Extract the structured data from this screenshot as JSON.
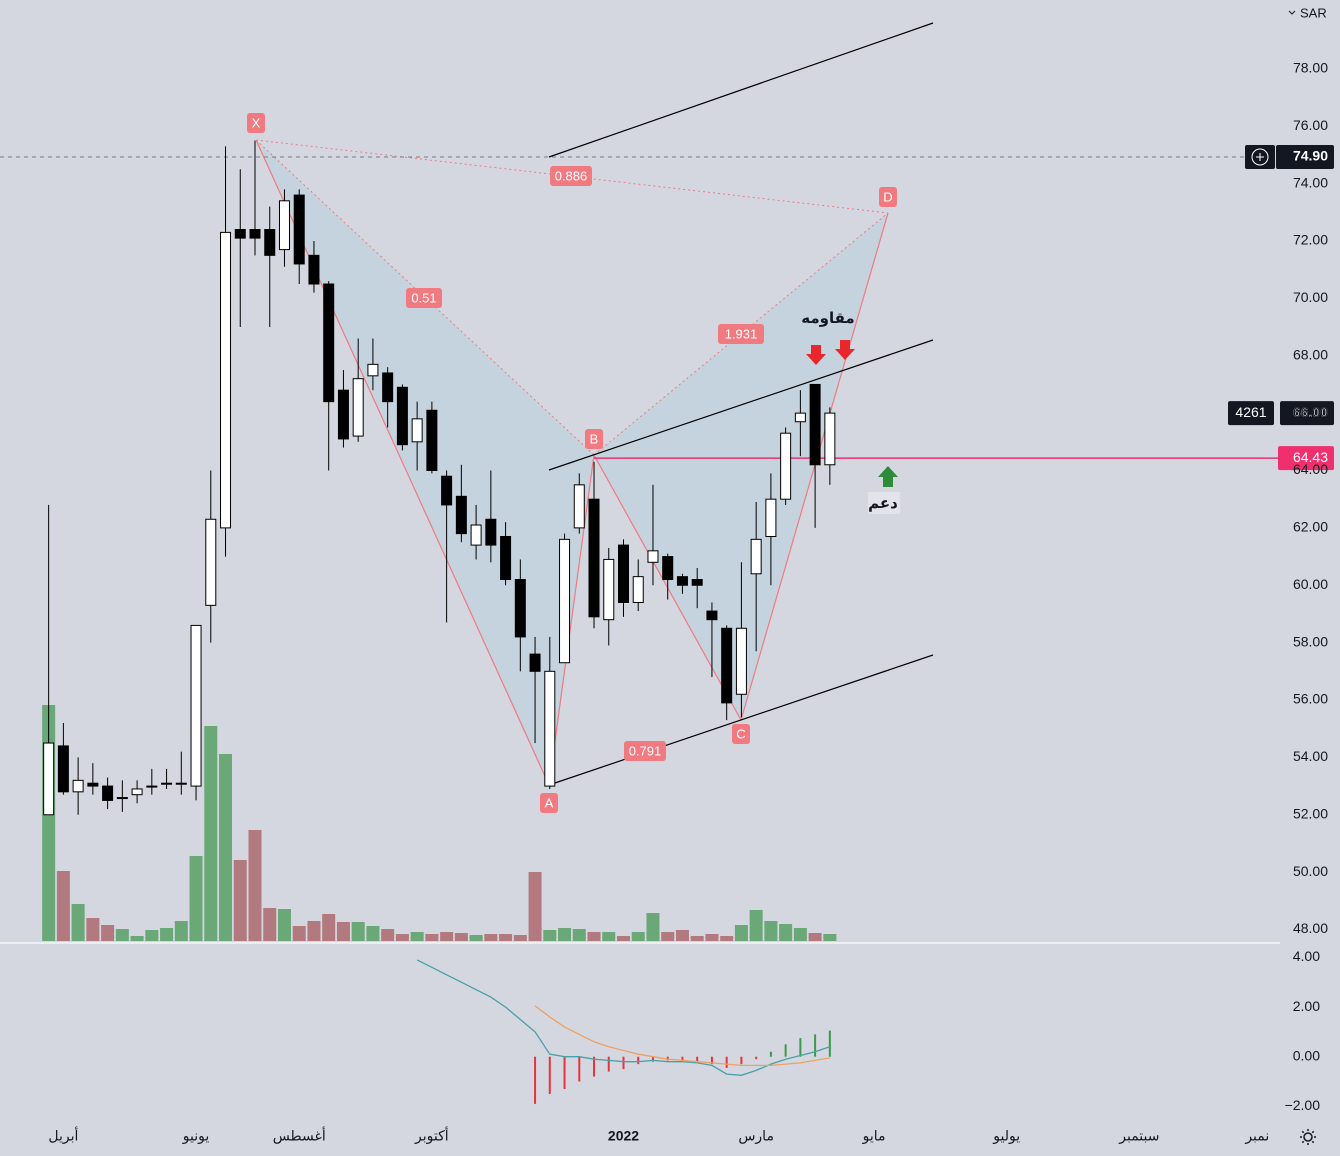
{
  "chart_data": [
    {
      "type": "candlestick",
      "currency": "SAR",
      "x": [
        0,
        1,
        2,
        3,
        4,
        5,
        6,
        7,
        8,
        9,
        10,
        11,
        12,
        13,
        14,
        15,
        16,
        17,
        18,
        19,
        20,
        21,
        22,
        23,
        24,
        25,
        26,
        27,
        28,
        29,
        30,
        31,
        32,
        33,
        34,
        35,
        36,
        37,
        38,
        39,
        40,
        41,
        42,
        43,
        44,
        45,
        46,
        47,
        48,
        49,
        50,
        51,
        52,
        53
      ],
      "open": [
        52.0,
        54.4,
        52.8,
        53.1,
        53.0,
        52.6,
        52.7,
        53.0,
        53.1,
        53.1,
        53.0,
        59.3,
        62.0,
        72.4,
        72.4,
        72.4,
        71.7,
        73.6,
        71.5,
        70.5,
        66.8,
        65.2,
        67.3,
        67.4,
        66.9,
        65.0,
        66.1,
        63.8,
        63.1,
        61.4,
        62.3,
        61.7,
        60.2,
        57.6,
        53.0,
        57.3,
        62.0,
        63.0,
        58.8,
        61.4,
        59.4,
        60.8,
        61.0,
        60.3,
        60.2,
        59.1,
        58.5,
        56.2,
        60.4,
        61.7,
        63.0,
        65.7,
        67.0,
        64.2
      ],
      "high": [
        62.8,
        55.2,
        54.0,
        53.8,
        53.3,
        53.2,
        53.2,
        53.6,
        53.6,
        54.2,
        58.6,
        64.0,
        75.3,
        74.5,
        75.5,
        73.2,
        73.8,
        73.8,
        72.0,
        70.6,
        67.5,
        68.6,
        68.6,
        67.6,
        67.0,
        66.4,
        66.4,
        64.0,
        64.2,
        62.8,
        64.0,
        62.2,
        60.9,
        58.2,
        58.2,
        61.8,
        63.9,
        64.3,
        61.3,
        61.6,
        60.9,
        63.5,
        61.1,
        60.4,
        60.6,
        59.4,
        58.6,
        60.8,
        62.9,
        63.9,
        65.5,
        66.8,
        67.0,
        66.2
      ],
      "low": [
        52.0,
        52.7,
        52.0,
        52.7,
        52.2,
        52.1,
        52.4,
        52.7,
        52.9,
        52.7,
        52.5,
        58.0,
        61.0,
        69.0,
        71.5,
        69.0,
        71.1,
        70.5,
        70.2,
        64.0,
        64.8,
        65.0,
        66.8,
        65.5,
        64.7,
        64.0,
        63.9,
        58.7,
        61.5,
        60.9,
        60.8,
        60.0,
        57.0,
        54.5,
        52.9,
        57.3,
        61.8,
        58.5,
        57.9,
        58.9,
        59.1,
        60.0,
        59.5,
        59.7,
        59.2,
        56.8,
        55.3,
        55.4,
        57.7,
        60.0,
        62.8,
        64.5,
        62.0,
        63.5
      ],
      "close": [
        54.5,
        52.8,
        53.2,
        53.0,
        52.5,
        52.6,
        52.9,
        53.0,
        53.1,
        53.1,
        58.6,
        62.3,
        72.3,
        72.1,
        72.1,
        71.5,
        73.4,
        71.2,
        70.5,
        66.4,
        65.1,
        67.2,
        67.7,
        66.4,
        64.9,
        65.8,
        64.0,
        62.8,
        61.8,
        62.1,
        61.4,
        60.2,
        58.2,
        57.0,
        57.0,
        61.6,
        63.5,
        58.9,
        60.9,
        59.4,
        60.3,
        61.2,
        60.2,
        60.0,
        60.0,
        58.8,
        55.9,
        58.5,
        61.6,
        63.0,
        65.3,
        66.0,
        64.2,
        66.0
      ],
      "volume": [
        236,
        70,
        37,
        23,
        16,
        12,
        5,
        11,
        13,
        20,
        85,
        215,
        187,
        81,
        111,
        33,
        32,
        15,
        20,
        27,
        19,
        19,
        15,
        12,
        7,
        9,
        7,
        9,
        8,
        6,
        7,
        7,
        6,
        69,
        11,
        13,
        12,
        9,
        9,
        5,
        9,
        28,
        9,
        11,
        5,
        7,
        5,
        16,
        31,
        20,
        17,
        13,
        8,
        7
      ],
      "up_color": "#ffffff",
      "down_color": "#000000",
      "volume_up_color": "#6aa877",
      "volume_down_color": "#b27a7e",
      "xlim": [
        -3.3,
        83.2
      ],
      "xticks": [
        {
          "value": 1,
          "label": "أبريل"
        },
        {
          "value": 10,
          "label": "يونيو"
        },
        {
          "value": 17,
          "label": "أغسطس"
        },
        {
          "value": 26,
          "label": "أكتوبر"
        },
        {
          "value": 39,
          "label": "2022"
        },
        {
          "value": 48,
          "label": "مارس"
        },
        {
          "value": 56,
          "label": "مايو"
        },
        {
          "value": 65,
          "label": "يوليو"
        },
        {
          "value": 74,
          "label": "سبتمبر"
        },
        {
          "value": 82,
          "label": "نمبر"
        }
      ],
      "ylim": [
        47.6,
        80.4
      ],
      "yticks": [
        {
          "value": 48,
          "label": "48.00"
        },
        {
          "value": 50,
          "label": "50.00"
        },
        {
          "value": 52,
          "label": "52.00"
        },
        {
          "value": 54,
          "label": "54.00"
        },
        {
          "value": 56,
          "label": "56.00"
        },
        {
          "value": 58,
          "label": "58.00"
        },
        {
          "value": 60,
          "label": "60.00"
        },
        {
          "value": 62,
          "label": "62.00"
        },
        {
          "value": 64,
          "label": "64.00"
        },
        {
          "value": 66,
          "label": "66.00"
        },
        {
          "value": 68,
          "label": "68.00"
        },
        {
          "value": 70,
          "label": "70.00"
        },
        {
          "value": 72,
          "label": "72.00"
        },
        {
          "value": 74,
          "label": "74.00"
        },
        {
          "value": 76,
          "label": "76.00"
        },
        {
          "value": 78,
          "label": "78.00"
        }
      ],
      "last_price": {
        "value": 66,
        "label": "66.00"
      },
      "countdown": 4261,
      "alert_line": {
        "value": 64.43,
        "label": "64.43"
      },
      "crosshair": {
        "value": 74.9,
        "label": "74.90"
      },
      "pattern_points": [
        "X",
        "A",
        "B",
        "C",
        "D"
      ],
      "pattern_ratios": [
        0.51,
        1.931,
        0.791,
        0.886
      ],
      "resistance_label": "مقاومه",
      "support_label": "دعم"
    },
    {
      "type": "macd",
      "histogram": [
        null,
        null,
        null,
        null,
        null,
        null,
        null,
        null,
        null,
        null,
        null,
        null,
        null,
        null,
        null,
        null,
        null,
        null,
        null,
        null,
        null,
        null,
        null,
        null,
        null,
        null,
        null,
        null,
        null,
        null,
        null,
        null,
        null,
        -1.9,
        -1.5,
        -1.3,
        -1.0,
        -0.8,
        -0.6,
        -0.5,
        -0.3,
        -0.2,
        -0.15,
        -0.15,
        -0.2,
        -0.3,
        -0.45,
        -0.3,
        -0.1,
        0.2,
        0.5,
        0.75,
        0.9,
        1.05
      ],
      "macd": [
        null,
        null,
        null,
        null,
        null,
        null,
        null,
        null,
        null,
        null,
        null,
        null,
        null,
        null,
        null,
        null,
        null,
        null,
        null,
        null,
        null,
        null,
        null,
        null,
        null,
        3.9,
        3.6,
        3.3,
        3.0,
        2.7,
        2.4,
        2.0,
        1.5,
        1.0,
        0.1,
        0.0,
        0.0,
        -0.1,
        -0.15,
        -0.2,
        -0.2,
        -0.15,
        -0.2,
        -0.2,
        -0.25,
        -0.35,
        -0.7,
        -0.75,
        -0.55,
        -0.3,
        -0.1,
        0.05,
        0.2,
        0.4
      ],
      "signal": [
        null,
        null,
        null,
        null,
        null,
        null,
        null,
        null,
        null,
        null,
        null,
        null,
        null,
        null,
        null,
        null,
        null,
        null,
        null,
        null,
        null,
        null,
        null,
        null,
        null,
        null,
        null,
        null,
        null,
        null,
        null,
        null,
        null,
        2.05,
        1.6,
        1.2,
        0.9,
        0.6,
        0.4,
        0.25,
        0.1,
        0.0,
        -0.1,
        -0.15,
        -0.2,
        -0.25,
        -0.3,
        -0.35,
        -0.35,
        -0.35,
        -0.3,
        -0.25,
        -0.15,
        -0.05
      ],
      "macd_color": "#4aa0a8",
      "signal_color": "#f0a060",
      "hist_up_color": "#3a9a4a",
      "hist_down_color": "#e8323c",
      "ylim": [
        -2.55,
        4.5
      ],
      "yticks": [
        {
          "value": 4,
          "label": "4.00"
        },
        {
          "value": 2,
          "label": "2.00"
        },
        {
          "value": 0,
          "label": "0.00"
        },
        {
          "value": -2,
          "label": "−2.00"
        }
      ]
    }
  ]
}
